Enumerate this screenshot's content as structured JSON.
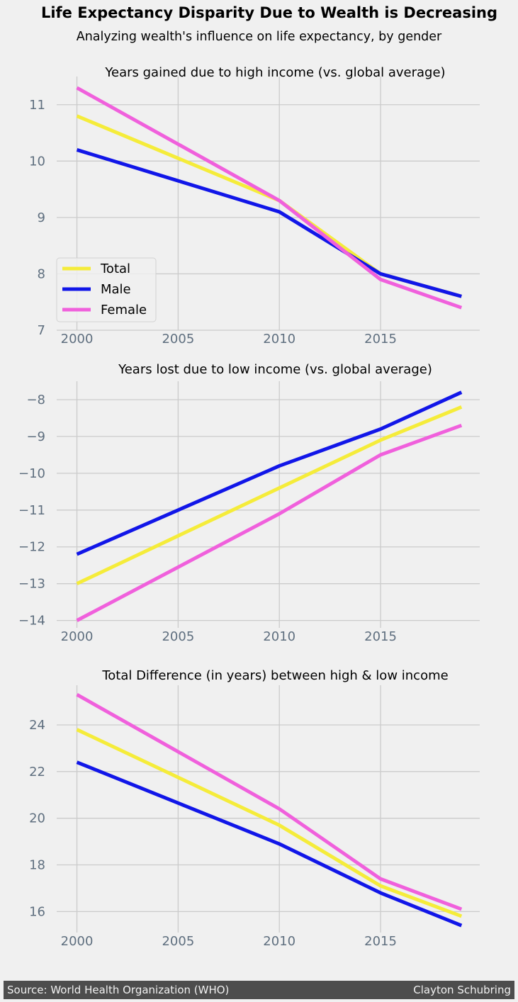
{
  "title": "Life Expectancy Disparity Due to Wealth is Decreasing",
  "subtitle": "Analyzing wealth's influence on life expectancy, by gender",
  "footer": {
    "source": "Source: World Health Organization (WHO)",
    "author": "Clayton Schubring"
  },
  "colors": {
    "Total": "#f5ec3a",
    "Male": "#1116e8",
    "Female": "#f060dc",
    "background": "#f0f0f0",
    "grid": "#cbcbcb",
    "tick": "#5f6f7f"
  },
  "chart_data": [
    {
      "type": "line",
      "title": "Years gained due to high income (vs. global average)",
      "x": [
        2000,
        2010,
        2015,
        2019
      ],
      "xticks": [
        2000,
        2005,
        2010,
        2015
      ],
      "xlim": [
        1999,
        2019.9
      ],
      "ylim": [
        7,
        11.5
      ],
      "yticks": [
        7,
        8,
        9,
        10,
        11
      ],
      "grid": true,
      "legend": "lower-left",
      "series": [
        {
          "name": "Total",
          "values": [
            10.8,
            9.3,
            8.0,
            7.6
          ]
        },
        {
          "name": "Male",
          "values": [
            10.2,
            9.1,
            8.0,
            7.6
          ]
        },
        {
          "name": "Female",
          "values": [
            11.3,
            9.3,
            7.9,
            7.4
          ]
        }
      ]
    },
    {
      "type": "line",
      "title": "Years lost due to low income (vs. global average)",
      "x": [
        2000,
        2010,
        2015,
        2019
      ],
      "xticks": [
        2000,
        2005,
        2010,
        2015
      ],
      "xlim": [
        1999,
        2019.9
      ],
      "ylim": [
        -14.2,
        -7.5
      ],
      "yticks": [
        -14,
        -13,
        -12,
        -11,
        -10,
        -9,
        -8
      ],
      "grid": true,
      "series": [
        {
          "name": "Total",
          "values": [
            -13.0,
            -10.4,
            -9.1,
            -8.2
          ]
        },
        {
          "name": "Male",
          "values": [
            -12.2,
            -9.8,
            -8.8,
            -7.8
          ]
        },
        {
          "name": "Female",
          "values": [
            -14.0,
            -11.1,
            -9.5,
            -8.7
          ]
        }
      ]
    },
    {
      "type": "line",
      "title": "Total Difference (in years) between high & low income",
      "x": [
        2000,
        2010,
        2015,
        2019
      ],
      "xticks": [
        2000,
        2005,
        2010,
        2015
      ],
      "xlim": [
        1999,
        2019.9
      ],
      "ylim": [
        15.1,
        25.7
      ],
      "yticks": [
        16,
        18,
        20,
        22,
        24
      ],
      "grid": true,
      "series": [
        {
          "name": "Total",
          "values": [
            23.8,
            19.7,
            17.1,
            15.8
          ]
        },
        {
          "name": "Male",
          "values": [
            22.4,
            18.9,
            16.8,
            15.4
          ]
        },
        {
          "name": "Female",
          "values": [
            25.3,
            20.4,
            17.4,
            16.1
          ]
        }
      ]
    }
  ]
}
